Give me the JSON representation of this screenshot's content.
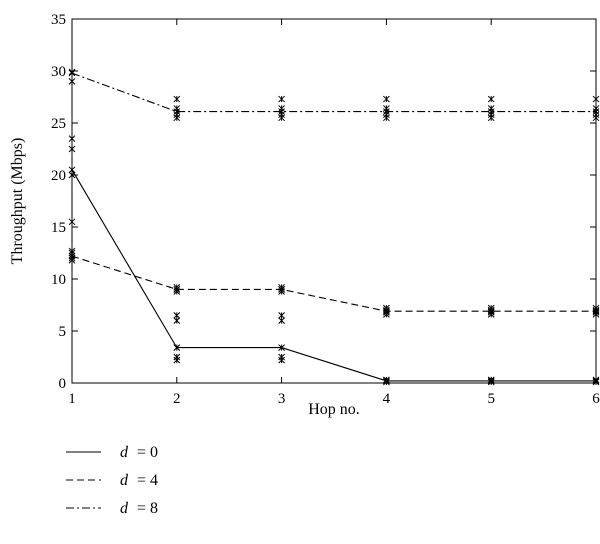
{
  "chart_data": {
    "type": "line",
    "title": "",
    "xlabel": "Hop no.",
    "ylabel": "Throughput (Mbps)",
    "xlim": [
      1,
      6
    ],
    "ylim": [
      0,
      35
    ],
    "x_ticks": [
      "1",
      "2",
      "3",
      "4",
      "5",
      "6"
    ],
    "y_ticks": [
      "0",
      "5",
      "10",
      "15",
      "20",
      "25",
      "30",
      "35"
    ],
    "grid": false,
    "legend_position": "below",
    "x": [
      1,
      2,
      3,
      4,
      5,
      6
    ],
    "series": [
      {
        "name": "d = 0",
        "var": "d",
        "val": "= 0",
        "dash": "solid",
        "values": [
          20.5,
          3.4,
          3.4,
          0.2,
          0.2,
          0.2
        ],
        "samples": [
          [
            20.5,
            22.5,
            23.5,
            15.5,
            20.0
          ],
          [
            3.4,
            2.5,
            2.2,
            6.0,
            6.5
          ],
          [
            3.4,
            2.5,
            2.2,
            6.0,
            6.5
          ],
          [
            0.2,
            0.1,
            0.3
          ],
          [
            0.2,
            0.1,
            0.3
          ],
          [
            0.2,
            0.1,
            0.3
          ]
        ]
      },
      {
        "name": "d = 4",
        "var": "d",
        "val": "= 4",
        "dash": "dashed",
        "values": [
          12.2,
          9.0,
          9.0,
          6.9,
          6.9,
          6.9
        ],
        "samples": [
          [
            12.2,
            11.8,
            12.5,
            12.0,
            12.7
          ],
          [
            9.0,
            8.8,
            9.2,
            9.0
          ],
          [
            9.0,
            8.8,
            9.2,
            9.0
          ],
          [
            6.9,
            6.6,
            7.2,
            6.8,
            7.0
          ],
          [
            6.9,
            6.6,
            7.2,
            6.8,
            7.0
          ],
          [
            6.9,
            6.6,
            7.2,
            6.8,
            7.0
          ]
        ]
      },
      {
        "name": "d = 8",
        "var": "d",
        "val": "= 8",
        "dash": "dashdot",
        "values": [
          29.8,
          26.1,
          26.1,
          26.1,
          26.1,
          26.1
        ],
        "samples": [
          [
            29.8,
            29.0,
            29.9
          ],
          [
            26.1,
            25.5,
            25.8,
            26.4,
            27.3
          ],
          [
            26.1,
            25.5,
            25.8,
            26.4,
            27.3
          ],
          [
            26.1,
            25.5,
            25.8,
            26.4,
            27.3
          ],
          [
            26.1,
            25.5,
            25.8,
            26.4,
            27.3
          ],
          [
            26.1,
            25.5,
            25.8,
            26.4,
            27.3
          ]
        ]
      }
    ]
  }
}
